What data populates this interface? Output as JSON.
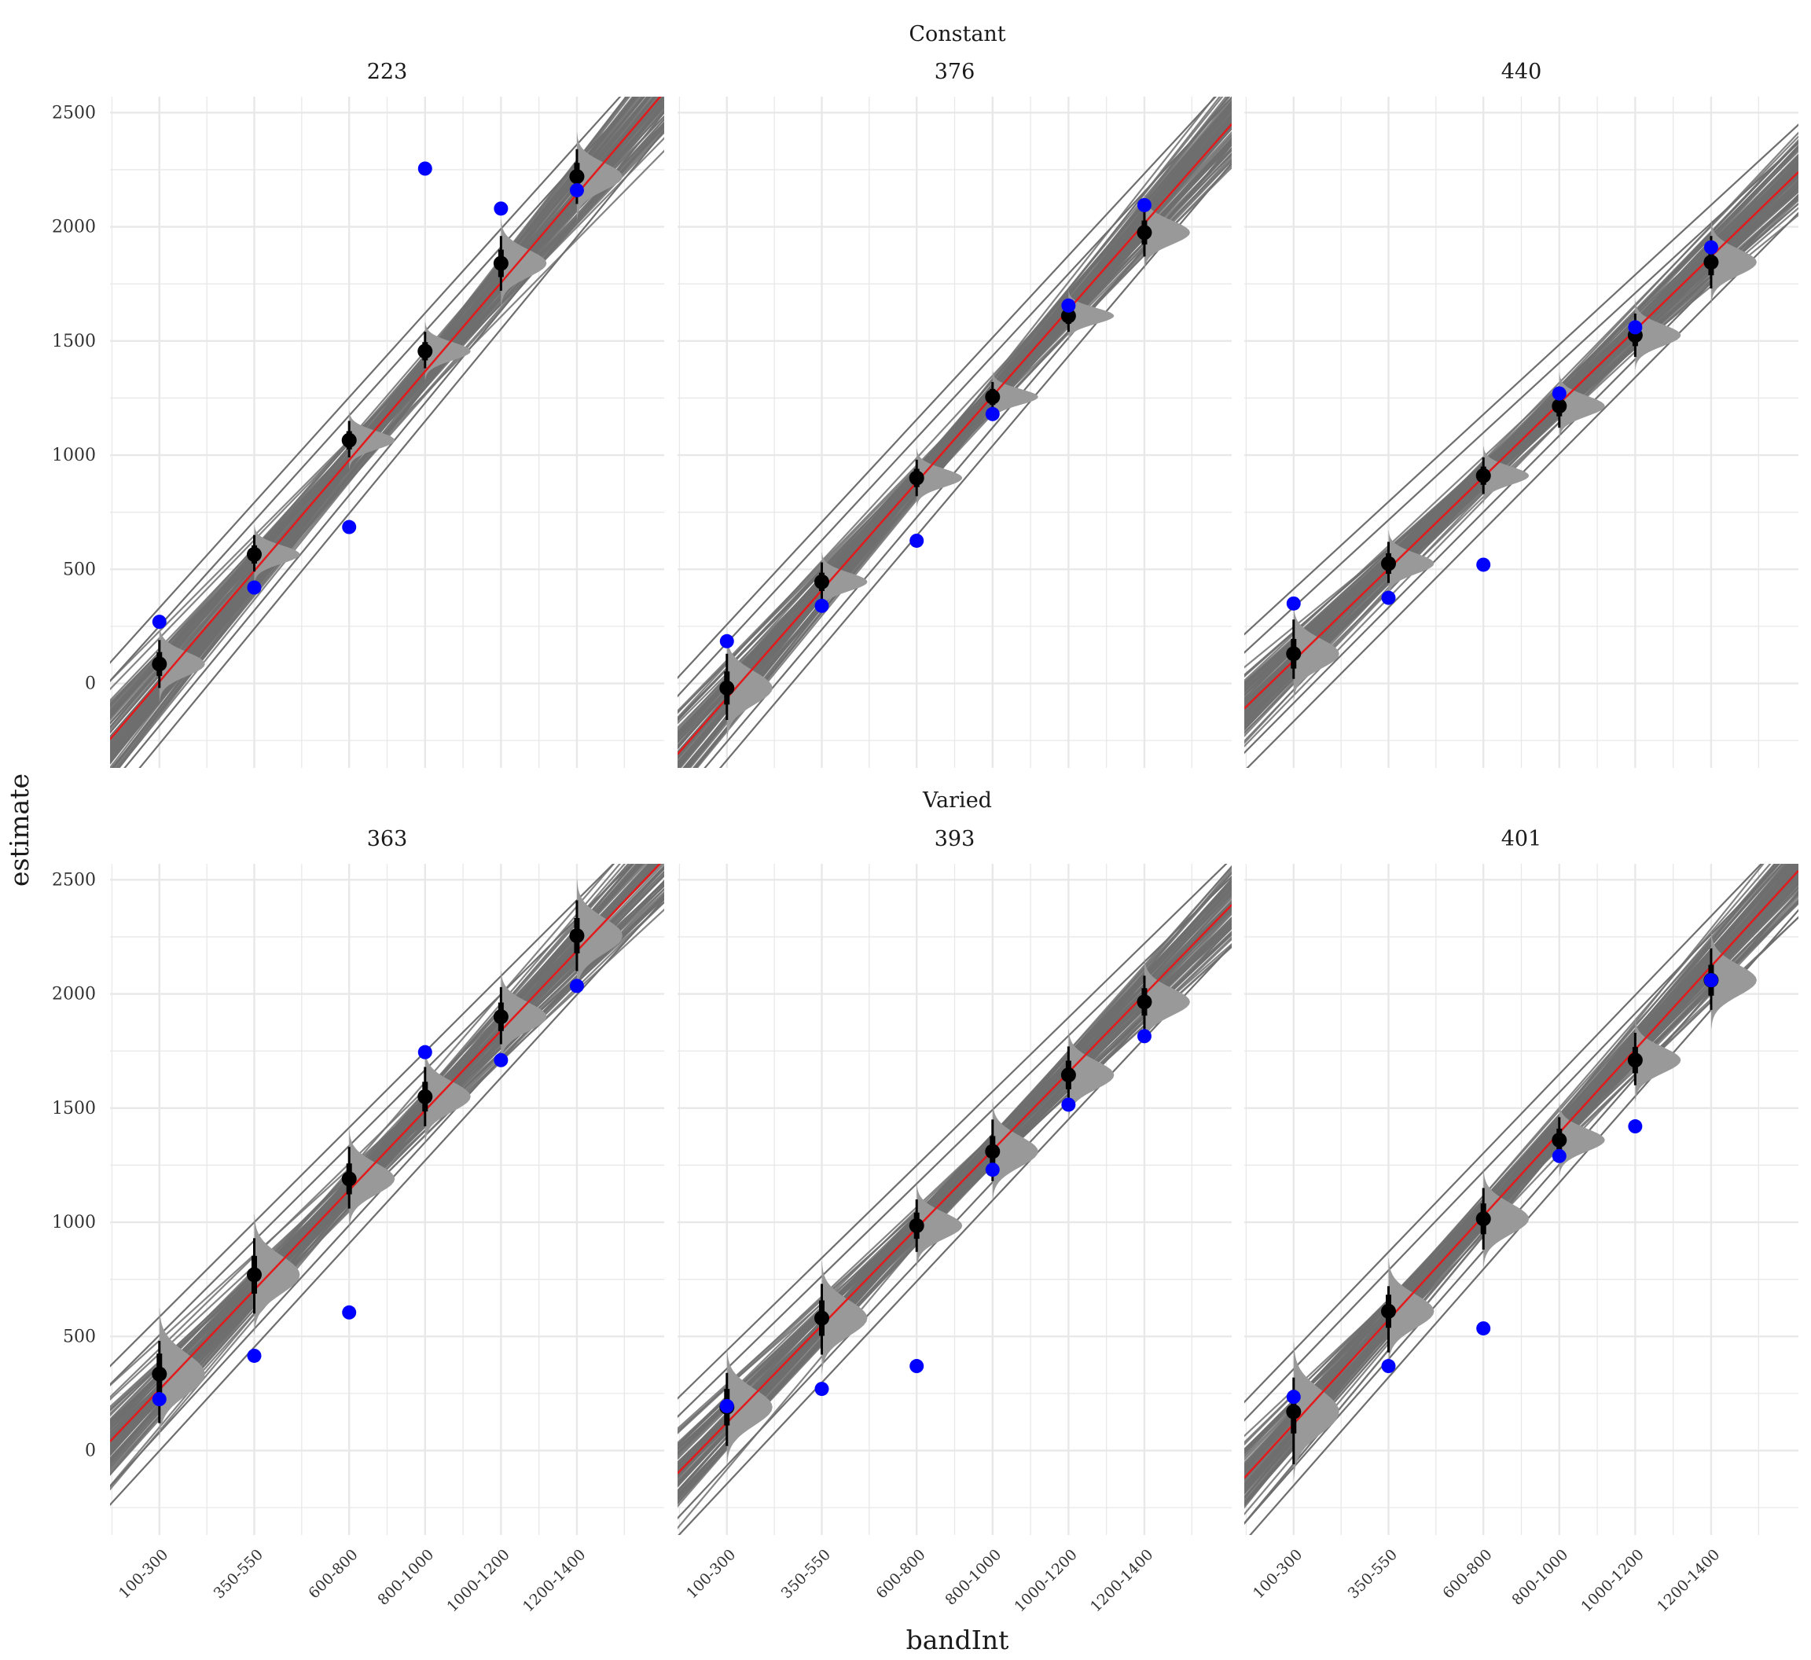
{
  "chart_data": {
    "type": "scatter",
    "xlabel": "bandInt",
    "ylabel": "estimate",
    "ylim": [
      -370,
      2570
    ],
    "yticks": [
      0,
      500,
      1000,
      1500,
      2000,
      2500
    ],
    "categories": [
      "100-300",
      "350-550",
      "600-800",
      "800-1000",
      "1000-1200",
      "1200-1400"
    ],
    "category_positions": [
      200,
      450,
      700,
      900,
      1100,
      1300
    ],
    "xlim": [
      70,
      1530
    ],
    "grid": true,
    "colors": {
      "observed": "#0000ff",
      "model_point": "#000000",
      "fit_line": "#e31a1c",
      "posterior_band": "#6e6e6e",
      "violin": "#999999",
      "grid": "#e8e8e8"
    },
    "groups": [
      {
        "label": "Constant",
        "panels": [
          {
            "title": "223",
            "observed": [
              270,
              420,
              685,
              2255,
              2080,
              2160
            ],
            "estimate": [
              85,
              565,
              1065,
              1455,
              1840,
              2220
            ],
            "interval": [
              [
                -20,
                190
              ],
              [
                490,
                650
              ],
              [
                990,
                1150
              ],
              [
                1380,
                1540
              ],
              [
                1720,
                1960
              ],
              [
                2100,
                2340
              ]
            ],
            "fit_line": [
              [
                70,
                -245
              ],
              [
                1530,
                2590
              ]
            ]
          },
          {
            "title": "376",
            "observed": [
              185,
              340,
              625,
              1180,
              1655,
              2095
            ],
            "estimate": [
              -20,
              445,
              900,
              1255,
              1610,
              1975
            ],
            "interval": [
              [
                -160,
                130
              ],
              [
                370,
                530
              ],
              [
                820,
                980
              ],
              [
                1180,
                1320
              ],
              [
                1540,
                1680
              ],
              [
                1870,
                2080
              ]
            ],
            "fit_line": [
              [
                70,
                -310
              ],
              [
                1530,
                2450
              ]
            ]
          },
          {
            "title": "440",
            "observed": [
              350,
              375,
              520,
              1270,
              1560,
              1910
            ],
            "estimate": [
              130,
              525,
              910,
              1215,
              1525,
              1845
            ],
            "interval": [
              [
                20,
                280
              ],
              [
                440,
                620
              ],
              [
                830,
                990
              ],
              [
                1120,
                1300
              ],
              [
                1430,
                1620
              ],
              [
                1730,
                1960
              ]
            ],
            "fit_line": [
              [
                70,
                -110
              ],
              [
                1530,
                2240
              ]
            ]
          }
        ]
      },
      {
        "label": "Varied",
        "panels": [
          {
            "title": "363",
            "observed": [
              225,
              415,
              605,
              1745,
              1710,
              2035
            ],
            "estimate": [
              335,
              770,
              1190,
              1550,
              1900,
              2255
            ],
            "interval": [
              [
                120,
                480
              ],
              [
                600,
                930
              ],
              [
                1060,
                1330
              ],
              [
                1420,
                1680
              ],
              [
                1780,
                2030
              ],
              [
                2100,
                2410
              ]
            ],
            "fit_line": [
              [
                70,
                40
              ],
              [
                1530,
                2590
              ]
            ]
          },
          {
            "title": "393",
            "observed": [
              195,
              270,
              370,
              1230,
              1515,
              1815
            ],
            "estimate": [
              190,
              580,
              985,
              1310,
              1645,
              1965
            ],
            "interval": [
              [
                20,
                340
              ],
              [
                420,
                730
              ],
              [
                870,
                1100
              ],
              [
                1180,
                1450
              ],
              [
                1520,
                1770
              ],
              [
                1840,
                2080
              ]
            ],
            "fit_line": [
              [
                70,
                -100
              ],
              [
                1530,
                2390
              ]
            ]
          },
          {
            "title": "401",
            "observed": [
              235,
              370,
              535,
              1290,
              1420,
              2060
            ],
            "estimate": [
              170,
              610,
              1015,
              1360,
              1710,
              2060
            ],
            "interval": [
              [
                -60,
                320
              ],
              [
                430,
                720
              ],
              [
                880,
                1150
              ],
              [
                1260,
                1460
              ],
              [
                1600,
                1830
              ],
              [
                1930,
                2200
              ]
            ],
            "fit_line": [
              [
                70,
                -120
              ],
              [
                1530,
                2540
              ]
            ]
          }
        ]
      }
    ]
  }
}
